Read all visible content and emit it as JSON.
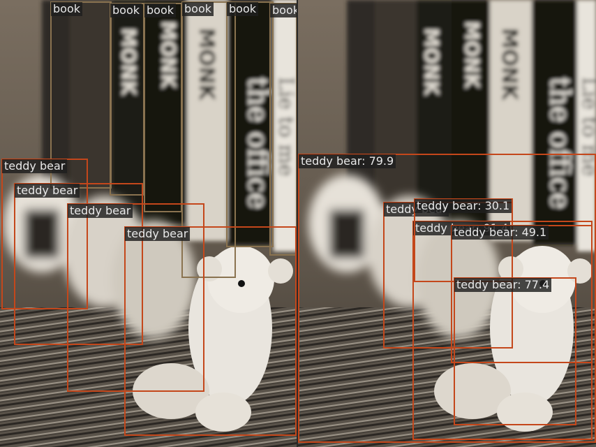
{
  "colors": {
    "book": "#8a7350",
    "teddy_bear": "#c4471b",
    "label_text": "#e8e8e8",
    "label_bg": "#1e1e1e"
  },
  "panels": {
    "left": {
      "detections": [
        {
          "label": "book"
        },
        {
          "label": "book"
        },
        {
          "label": "book"
        },
        {
          "label": "book"
        },
        {
          "label": "book"
        },
        {
          "label": "book"
        },
        {
          "label": "teddy bear"
        },
        {
          "label": "teddy bear"
        },
        {
          "label": "teddy bear"
        },
        {
          "label": "teddy bear"
        }
      ]
    },
    "right": {
      "detections": [
        {
          "label": "teddy bear: 79.9"
        },
        {
          "label": "teddy bear"
        },
        {
          "label": "teddy bear: 30.1"
        },
        {
          "label": "teddy bear: 91.4"
        },
        {
          "label": "teddy bear: 49.1"
        },
        {
          "label": "teddy bear: 77.4"
        }
      ]
    }
  }
}
